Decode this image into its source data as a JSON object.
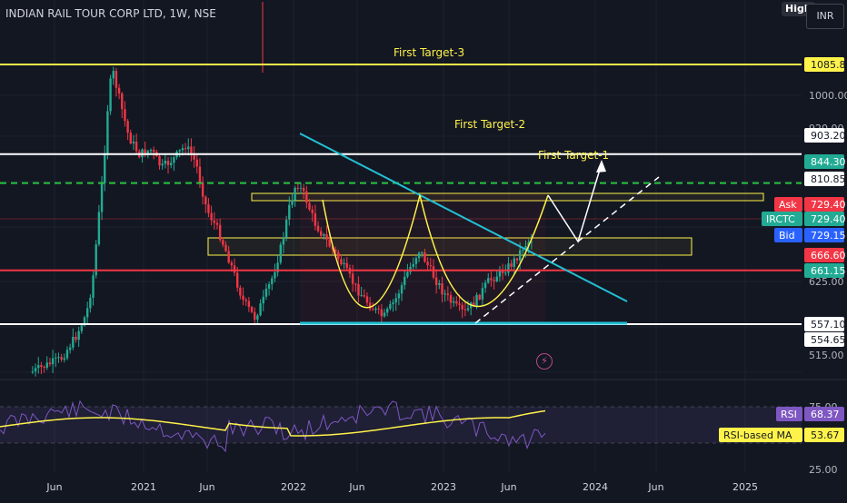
{
  "header": {
    "title": "INDIAN RAIL TOUR CORP LTD, 1W, NSE",
    "high_button": "High",
    "currency_button": "INR"
  },
  "chart_data": [
    {
      "type": "candlestick",
      "title": "INDIAN RAIL TOUR CORP LTD, 1W, NSE",
      "symbol": "IRCTC",
      "timeframe": "1W",
      "exchange": "NSE",
      "price_scale": {
        "ticks": [
          "1000.00",
          "920.00",
          "625.00",
          "515.00"
        ]
      },
      "x_ticks": [
        "Jun",
        "2021",
        "Jun",
        "2022",
        "Jun",
        "2023",
        "Jun",
        "2024",
        "Jun",
        "2025"
      ],
      "horizontal_levels": [
        {
          "price": 1085.8,
          "label": "First Target-3",
          "color": "#fff34a"
        },
        {
          "price": 903.2,
          "label": "First Target-2",
          "color": "#ffffff"
        },
        {
          "price": 844.3,
          "label": "First Target-1",
          "color": "#26c340",
          "style": "dashed"
        },
        {
          "price": 666.6,
          "color": "#f23645"
        },
        {
          "price": 557.1,
          "color": "#ffffff"
        }
      ],
      "price_labels": [
        {
          "value": "1085.80",
          "bg": "#fff34a",
          "fg": "#131722"
        },
        {
          "value": "903.20",
          "bg": "#ffffff",
          "fg": "#131722"
        },
        {
          "value": "844.30",
          "bg": "#22ab94",
          "fg": "#ffffff"
        },
        {
          "value": "810.85",
          "bg": "#ffffff",
          "fg": "#131722"
        },
        {
          "value": "729.40",
          "tag": "Ask",
          "bg": "#f23645",
          "fg": "#ffffff"
        },
        {
          "value": "729.40",
          "tag": "IRCTC",
          "bg": "#22ab94",
          "fg": "#ffffff"
        },
        {
          "value": "729.15",
          "tag": "Bid",
          "bg": "#2962ff",
          "fg": "#ffffff"
        },
        {
          "value": "666.60",
          "bg": "#f23645",
          "fg": "#ffffff"
        },
        {
          "value": "661.15",
          "bg": "#22ab94",
          "fg": "#ffffff"
        },
        {
          "value": "557.10",
          "bg": "#ffffff",
          "fg": "#131722"
        },
        {
          "value": "554.65",
          "bg": "#ffffff",
          "fg": "#131722"
        }
      ],
      "annotations": [
        "First Target-3",
        "First Target-2",
        "First Target-1"
      ],
      "colors": {
        "up": "#22ab94",
        "down": "#f23645",
        "background": "#131722"
      }
    },
    {
      "type": "line",
      "title": "RSI",
      "series": [
        {
          "name": "RSI",
          "last_value": 68.37,
          "color": "#7e57c2"
        },
        {
          "name": "RSI-based MA",
          "last_value": 53.67,
          "color": "#fff34a"
        }
      ],
      "y_ticks": [
        "75.00",
        "25.00"
      ]
    }
  ]
}
